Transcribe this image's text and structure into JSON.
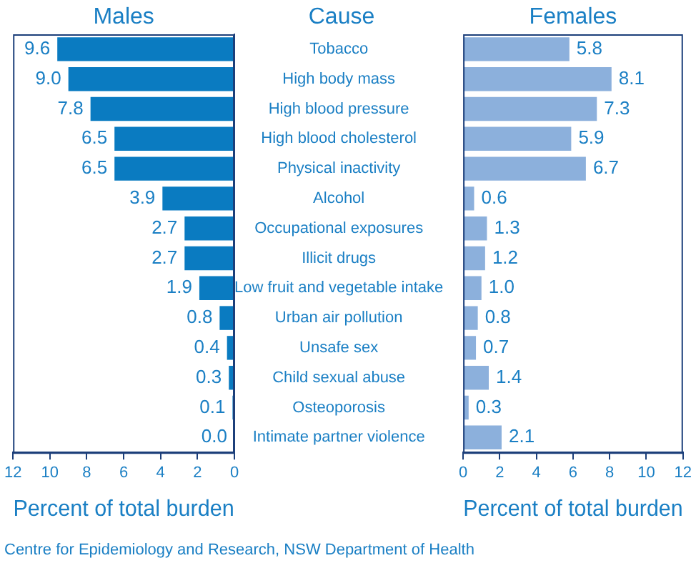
{
  "chart_data": [
    {
      "type": "bar",
      "orientation": "horizontal",
      "title": "Males",
      "ylabel": "Cause",
      "xlabel": "Percent of total burden",
      "categories": [
        "Tobacco",
        "High body mass",
        "High blood pressure",
        "High blood cholesterol",
        "Physical inactivity",
        "Alcohol",
        "Occupational exposures",
        "Illicit drugs",
        "Low fruit and vegetable intake",
        "Urban air pollution",
        "Unsafe sex",
        "Child sexual abuse",
        "Osteoporosis",
        "Intimate partner violence"
      ],
      "values": [
        9.6,
        9.0,
        7.8,
        6.5,
        6.5,
        3.9,
        2.7,
        2.7,
        1.9,
        0.8,
        0.4,
        0.3,
        0.1,
        0.0
      ],
      "color": "#0a7bc1",
      "value_labels": [
        "9.6",
        "9.0",
        "7.8",
        "6.5",
        "6.5",
        "3.9",
        "2.7",
        "2.7",
        "1.9",
        "0.8",
        "0.4",
        "0.3",
        "0.1",
        "0.0"
      ],
      "xlim": [
        12,
        0
      ],
      "xticks": [
        12,
        10,
        8,
        6,
        4,
        2,
        0
      ],
      "grid": false,
      "legend": false,
      "annotations": [
        "Centre for Epidemiology and Research, NSW Department of Health"
      ]
    },
    {
      "type": "bar",
      "orientation": "horizontal",
      "title": "Females",
      "xlabel": "Percent of total burden",
      "categories": [
        null,
        null,
        null,
        null,
        null,
        null,
        null,
        null,
        null,
        null,
        null,
        null,
        null,
        null
      ],
      "values": [
        5.8,
        8.1,
        7.3,
        5.9,
        6.7,
        0.6,
        1.3,
        1.2,
        1.0,
        0.8,
        0.7,
        1.4,
        0.3,
        2.1
      ],
      "color": "#8cb0dc",
      "value_labels": [
        "5.8",
        "8.1",
        "7.3",
        "5.9",
        "6.7",
        "0.6",
        "1.3",
        "1.2",
        "1.0",
        "0.8",
        "0.7",
        "1.4",
        "0.3",
        "2.1"
      ],
      "xlim": [
        0,
        12
      ],
      "xticks": [
        0,
        2,
        4,
        6,
        8,
        10,
        12
      ],
      "grid": false,
      "legend": false,
      "tick_labels": "x"
    }
  ]
}
